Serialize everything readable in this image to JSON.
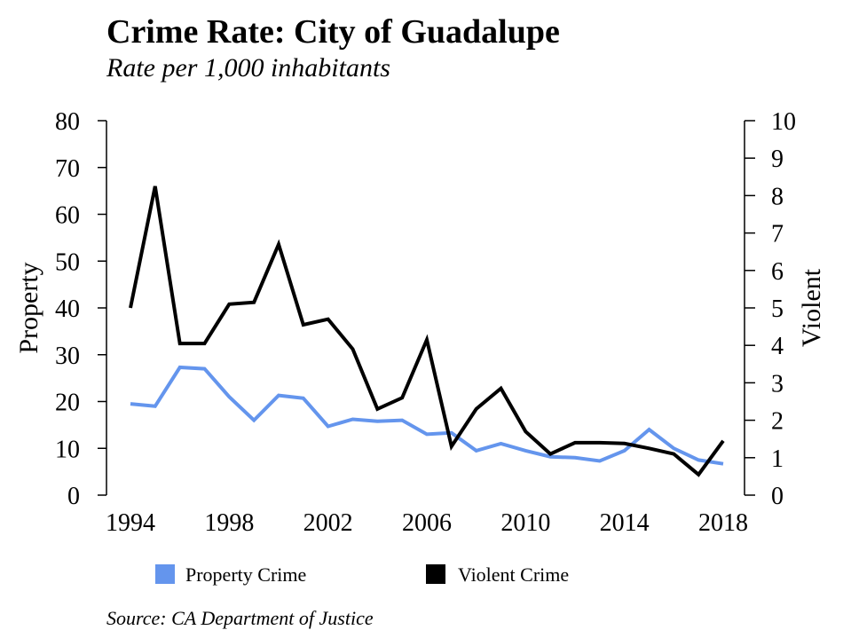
{
  "title": "Crime Rate: City of Guadalupe",
  "subtitle": "Rate per 1,000 inhabitants",
  "source": "Source: CA Department of Justice",
  "chart_data": {
    "type": "line",
    "x": [
      1994,
      1995,
      1996,
      1997,
      1998,
      1999,
      2000,
      2001,
      2002,
      2003,
      2004,
      2005,
      2006,
      2007,
      2008,
      2009,
      2010,
      2011,
      2012,
      2013,
      2014,
      2015,
      2016,
      2017,
      2018
    ],
    "x_ticks": [
      "1994",
      "1998",
      "2002",
      "2006",
      "2010",
      "2014",
      "2018"
    ],
    "xlim": [
      1994,
      2018
    ],
    "y_left": {
      "label": "Property",
      "lim": [
        0,
        80
      ],
      "ticks": [
        "0",
        "10",
        "20",
        "30",
        "40",
        "50",
        "60",
        "70",
        "80"
      ]
    },
    "y_right": {
      "label": "Violent",
      "lim": [
        0,
        10
      ],
      "ticks": [
        "0",
        "1",
        "2",
        "3",
        "4",
        "5",
        "6",
        "7",
        "8",
        "9",
        "10"
      ]
    },
    "grid": false,
    "legend_position": "bottom",
    "series": [
      {
        "name": "Property Crime",
        "axis": "left",
        "color": "#6495ed",
        "values": [
          19.5,
          19.0,
          27.3,
          27.0,
          21.0,
          16.0,
          21.3,
          20.7,
          14.7,
          16.2,
          15.8,
          16.0,
          13.0,
          13.3,
          9.5,
          11.0,
          9.5,
          8.2,
          8.0,
          7.3,
          9.5,
          14.0,
          10.0,
          7.5,
          6.7
        ]
      },
      {
        "name": "Violent Crime",
        "axis": "right",
        "color": "#000000",
        "values": [
          5.0,
          8.25,
          4.05,
          4.05,
          5.1,
          5.15,
          6.7,
          4.55,
          4.7,
          3.9,
          2.3,
          2.6,
          4.15,
          1.3,
          2.3,
          2.85,
          1.7,
          1.1,
          1.4,
          1.4,
          1.38,
          1.25,
          1.1,
          0.55,
          1.45
        ]
      }
    ]
  }
}
